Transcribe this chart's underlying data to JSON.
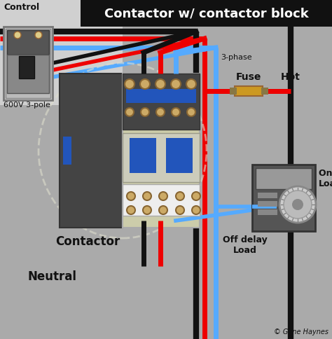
{
  "title": "Contactor w/ contactor block",
  "bg_color": "#aaaaaa",
  "panel_light": "#d0d0d0",
  "title_bg": "#111111",
  "title_fg": "#ffffff",
  "wire_red": "#ee0000",
  "wire_blue": "#55aaff",
  "wire_black": "#111111",
  "fuse_color": "#cc9922",
  "fuse_end": "#887744",
  "contactor_body": "#777766",
  "contactor_dark": "#444444",
  "contactor_blue": "#2255bb",
  "contactor_cream": "#ccccaa",
  "contactor_white": "#eeeeee",
  "contactor_gold": "#ccaa66",
  "contactor_outline": "#ddddcc",
  "timer_dark": "#555555",
  "timer_light": "#999999",
  "timer_knob": "#cccccc",
  "label_color": "#111111",
  "labels": {
    "control": "Control",
    "pole": "600V 3-pole",
    "phase": "3-phase",
    "fuse": "Fuse",
    "hot": "Hot",
    "contactor": "Contactor",
    "neutral": "Neutral",
    "on_delay": "On delay\nLoad",
    "off_delay": "Off delay\nLoad",
    "copyright": "© Gene Haynes"
  },
  "wire_lw": 5,
  "wire_lw_thin": 3
}
